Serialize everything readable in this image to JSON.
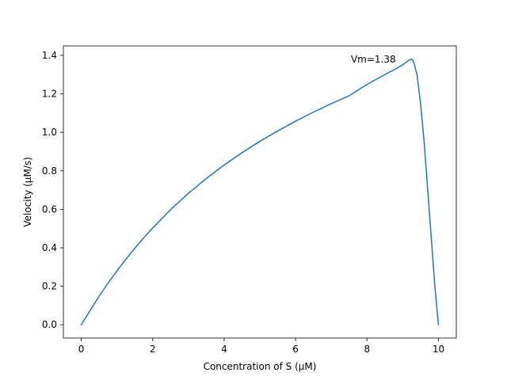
{
  "chart_data": {
    "type": "line",
    "title": "",
    "xlabel": "Concentration of S (μM)",
    "ylabel": "Velocity (μM/s)",
    "xlim": [
      -0.5,
      10.5
    ],
    "ylim": [
      -0.069,
      1.449
    ],
    "xticks": [
      0,
      2,
      4,
      6,
      8,
      10
    ],
    "xtick_labels": [
      "0",
      "2",
      "4",
      "6",
      "8",
      "10"
    ],
    "yticks": [
      0.0,
      0.2,
      0.4,
      0.6,
      0.8,
      1.0,
      1.2,
      1.4
    ],
    "ytick_labels": [
      "0.0",
      "0.2",
      "0.4",
      "0.6",
      "0.8",
      "1.0",
      "1.2",
      "1.4"
    ],
    "grid": false,
    "series": [
      {
        "name": "velocity",
        "color": "#1f77b4",
        "x": [
          0,
          0.25,
          0.5,
          0.75,
          1.0,
          1.25,
          1.5,
          1.75,
          2.0,
          2.5,
          3.0,
          3.5,
          4.0,
          4.5,
          5.0,
          5.5,
          6.0,
          6.5,
          7.0,
          7.5,
          8.0,
          8.5,
          9.0,
          9.1,
          9.2,
          9.25,
          9.3,
          9.4,
          9.5,
          9.6,
          9.7,
          9.8,
          9.9,
          10.0
        ],
        "y": [
          0.0,
          0.075,
          0.148,
          0.216,
          0.28,
          0.341,
          0.398,
          0.452,
          0.503,
          0.598,
          0.683,
          0.76,
          0.83,
          0.894,
          0.953,
          1.007,
          1.058,
          1.105,
          1.149,
          1.19,
          1.249,
          1.3,
          1.35,
          1.365,
          1.378,
          1.38,
          1.37,
          1.3,
          1.15,
          0.95,
          0.7,
          0.45,
          0.2,
          0.0
        ]
      }
    ],
    "annotations": [
      {
        "text": "Vm=1.38",
        "x": 7.55,
        "y": 1.38
      }
    ]
  }
}
